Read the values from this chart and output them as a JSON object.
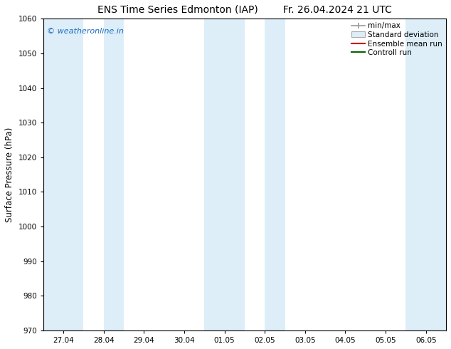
{
  "title_left": "ENS Time Series Edmonton (IAP)",
  "title_right": "Fr. 26.04.2024 21 UTC",
  "ylabel": "Surface Pressure (hPa)",
  "ylim": [
    970,
    1060
  ],
  "yticks": [
    970,
    980,
    990,
    1000,
    1010,
    1020,
    1030,
    1040,
    1050,
    1060
  ],
  "x_labels": [
    "27.04",
    "28.04",
    "29.04",
    "30.04",
    "01.05",
    "02.05",
    "03.05",
    "04.05",
    "05.05",
    "06.05"
  ],
  "x_values": [
    0,
    1,
    2,
    3,
    4,
    5,
    6,
    7,
    8,
    9
  ],
  "xlim": [
    -0.5,
    9.5
  ],
  "shaded_bands": [
    {
      "x_start": -0.5,
      "x_end": 0.5,
      "color": "#ddeef8"
    },
    {
      "x_start": 1.0,
      "x_end": 1.5,
      "color": "#ddeef8"
    },
    {
      "x_start": 3.5,
      "x_end": 4.5,
      "color": "#ddeef8"
    },
    {
      "x_start": 5.0,
      "x_end": 5.5,
      "color": "#ddeef8"
    },
    {
      "x_start": 8.5,
      "x_end": 9.5,
      "color": "#ddeef8"
    }
  ],
  "watermark_text": "© weatheronline.in",
  "watermark_color": "#1a6bbf",
  "watermark_fontsize": 8,
  "legend_items": [
    {
      "label": "min/max",
      "color": "#999999"
    },
    {
      "label": "Standard deviation",
      "color": "#ddeef8",
      "edge": "#aaaaaa"
    },
    {
      "label": "Ensemble mean run",
      "color": "#cc0000"
    },
    {
      "label": "Controll run",
      "color": "#006600"
    }
  ],
  "background_color": "#ffffff",
  "title_fontsize": 10,
  "tick_fontsize": 7.5,
  "label_fontsize": 8.5,
  "legend_fontsize": 7.5
}
